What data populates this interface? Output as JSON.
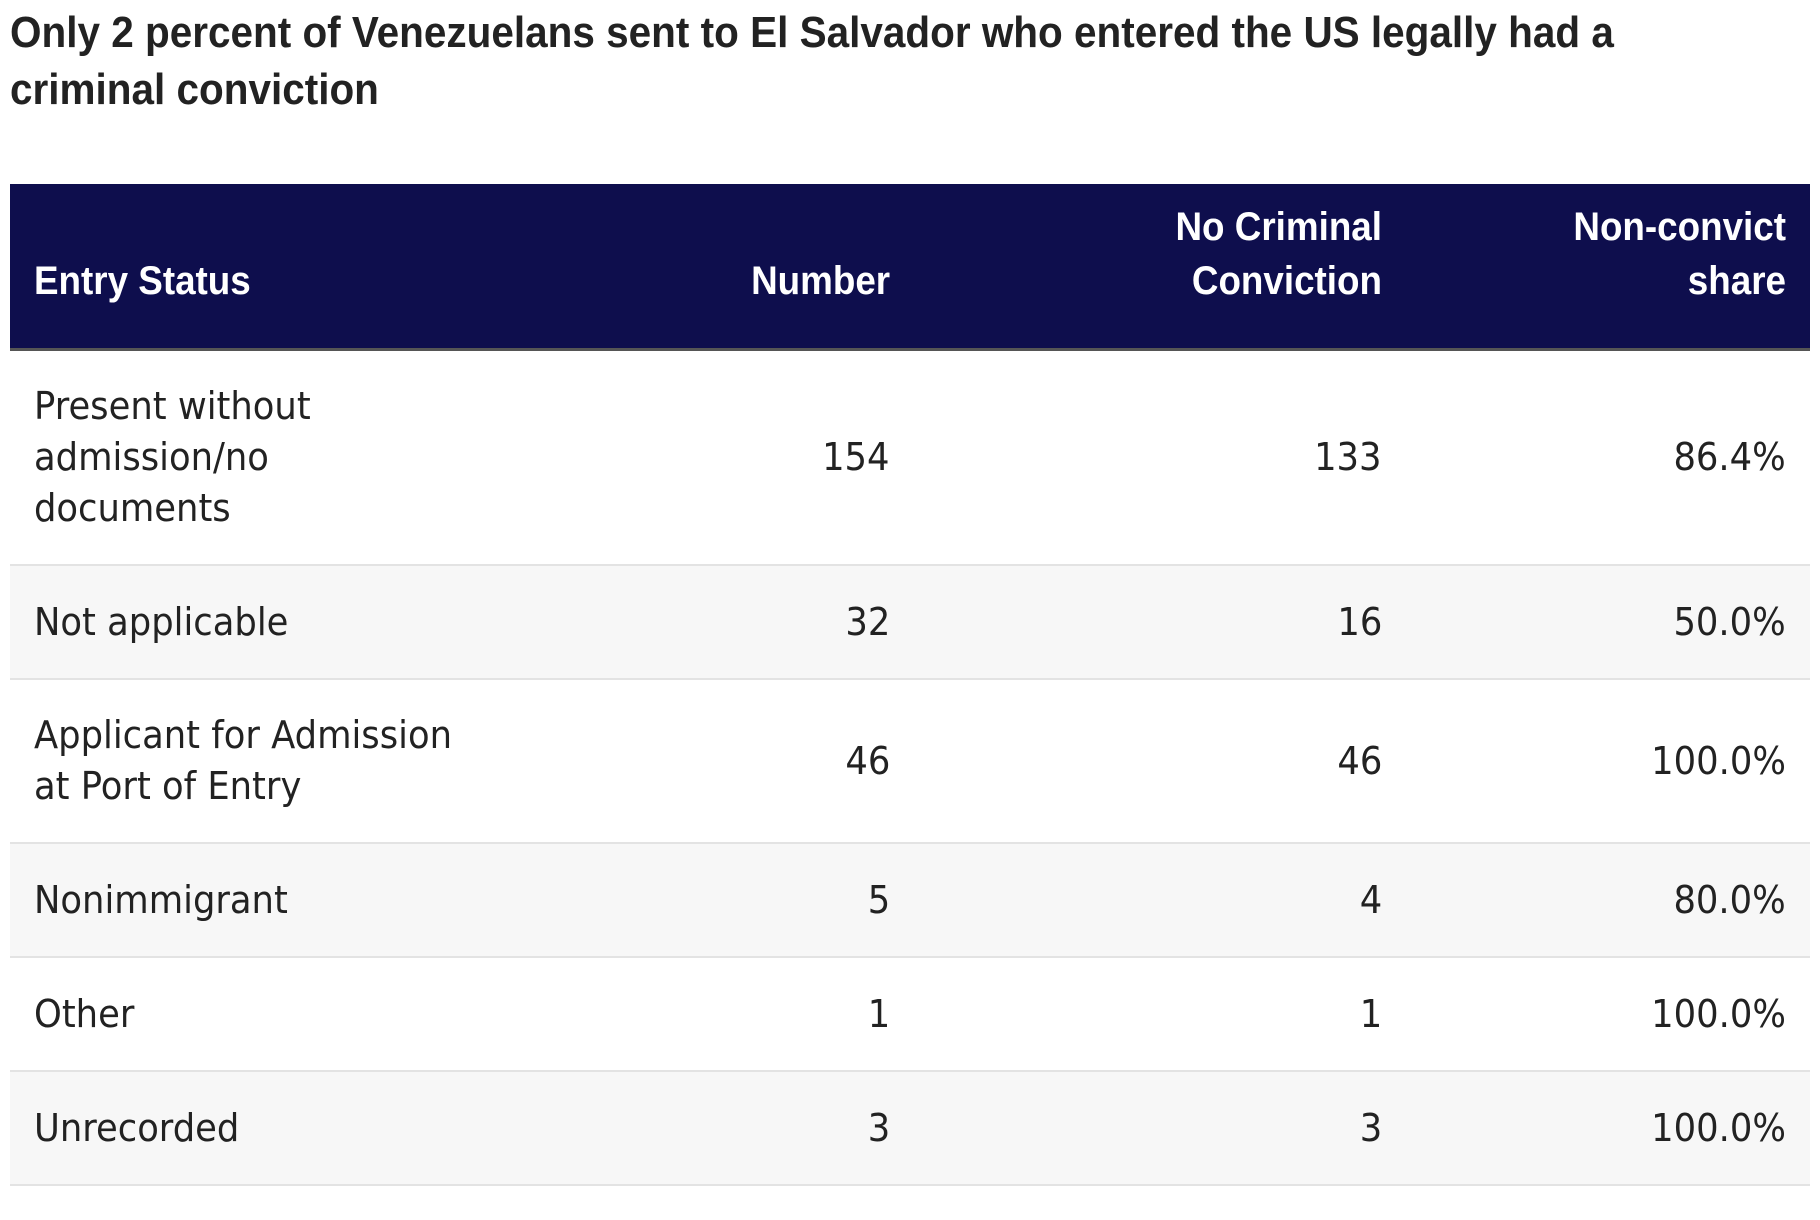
{
  "chart_data": {
    "type": "table",
    "title": "Only 2 percent of Venezuelans sent to El Salvador who entered the US legally had a criminal conviction",
    "columns": [
      "Entry Status",
      "Number",
      "No Criminal Conviction",
      "Non-convict share"
    ],
    "rows": [
      {
        "entry_status": "Present without admission/no documents",
        "number": "154",
        "no_criminal_conviction": "133",
        "non_convict_share": "86.4%"
      },
      {
        "entry_status": "Not applicable",
        "number": "32",
        "no_criminal_conviction": "16",
        "non_convict_share": "50.0%"
      },
      {
        "entry_status": "Applicant for Admission at Port of Entry",
        "number": "46",
        "no_criminal_conviction": "46",
        "non_convict_share": "100.0%"
      },
      {
        "entry_status": "Nonimmigrant",
        "number": "5",
        "no_criminal_conviction": "4",
        "non_convict_share": "80.0%"
      },
      {
        "entry_status": "Other",
        "number": "1",
        "no_criminal_conviction": "1",
        "non_convict_share": "100.0%"
      },
      {
        "entry_status": "Unrecorded",
        "number": "3",
        "no_criminal_conviction": "3",
        "non_convict_share": "100.0%"
      }
    ],
    "colors": {
      "header_background": "#0e0e4d",
      "header_text": "#ffffff",
      "row_alt_background": "#f7f7f7",
      "row_divider": "#e3e3e3"
    }
  }
}
